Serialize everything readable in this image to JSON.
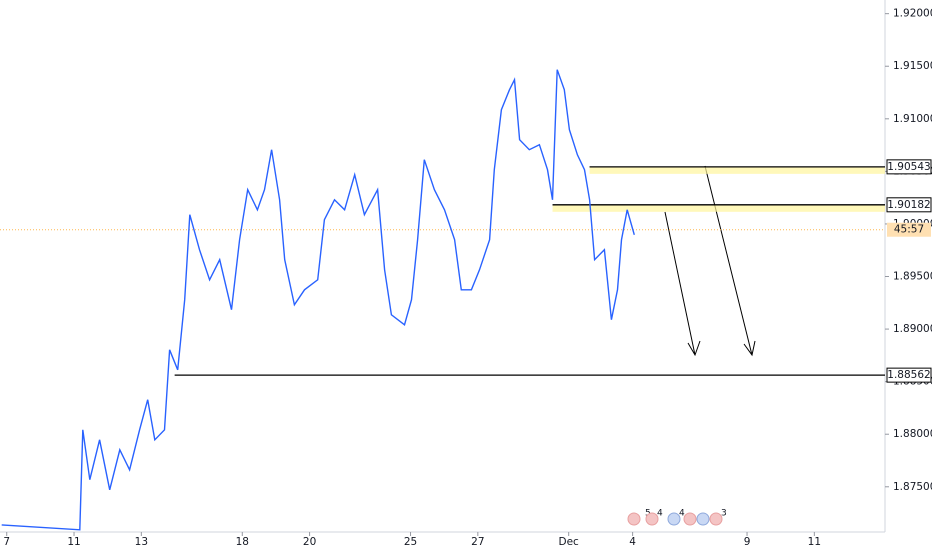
{
  "chart_data": {
    "type": "line",
    "color": "#2962ff",
    "x": [
      -0.15,
      2.17,
      2.26,
      2.47,
      2.76,
      3.06,
      3.36,
      3.65,
      3.95,
      4.19,
      4.4,
      4.69,
      4.84,
      5.08,
      5.29,
      5.44,
      5.73,
      6.03,
      6.33,
      6.68,
      6.92,
      7.16,
      7.45,
      7.66,
      7.87,
      8.11,
      8.26,
      8.55,
      8.85,
      9.24,
      9.44,
      9.74,
      10.04,
      10.34,
      10.63,
      11.02,
      11.23,
      11.43,
      11.82,
      12.03,
      12.21,
      12.41,
      12.71,
      13.01,
      13.31,
      13.51,
      13.81,
      14.05,
      14.35,
      14.49,
      14.7,
      14.94,
      15.09,
      15.24,
      15.53,
      15.83,
      16.07,
      16.22,
      16.36,
      16.57,
      16.72,
      16.96,
      17.17,
      17.32,
      17.47,
      17.76,
      17.97,
      18.15,
      18.27,
      18.44,
      18.65
    ],
    "values": [
      1.87138,
      1.87091,
      1.88042,
      1.87567,
      1.87947,
      1.87471,
      1.87852,
      1.87662,
      1.88042,
      1.88328,
      1.87947,
      1.88042,
      1.88803,
      1.88613,
      1.89279,
      1.90088,
      1.89755,
      1.89469,
      1.8966,
      1.89184,
      1.8985,
      1.90326,
      1.90135,
      1.90326,
      1.90706,
      1.9023,
      1.8966,
      1.89231,
      1.89374,
      1.89469,
      1.9004,
      1.9023,
      1.90135,
      1.90468,
      1.90088,
      1.90326,
      1.89564,
      1.89136,
      1.89041,
      1.89279,
      1.8985,
      1.90611,
      1.90326,
      1.90135,
      1.8985,
      1.89374,
      1.89374,
      1.89564,
      1.8985,
      1.90516,
      1.91087,
      1.91277,
      1.91372,
      1.90801,
      1.90706,
      1.90754,
      1.90516,
      1.9023,
      1.91467,
      1.91277,
      1.90896,
      1.90658,
      1.90516,
      1.9023,
      1.8966,
      1.89755,
      1.89089,
      1.89374,
      1.8985,
      1.90135,
      1.89897
    ],
    "xlim": [
      -0.2,
      26.1
    ],
    "xticks": [
      {
        "value": 0,
        "label": "7"
      },
      {
        "value": 2,
        "label": "11"
      },
      {
        "value": 4,
        "label": "13"
      },
      {
        "value": 7,
        "label": "18"
      },
      {
        "value": 9,
        "label": "20"
      },
      {
        "value": 12,
        "label": "25"
      },
      {
        "value": 14,
        "label": "27"
      },
      {
        "value": 16.7,
        "label": "Dec"
      },
      {
        "value": 18.6,
        "label": "4"
      },
      {
        "value": 22,
        "label": "9"
      },
      {
        "value": 24,
        "label": "11"
      }
    ],
    "ylim": [
      1.8707,
      1.9213
    ],
    "yticks": [
      {
        "value": 1.875,
        "label": "1.87500"
      },
      {
        "value": 1.88,
        "label": "1.88000"
      },
      {
        "value": 1.885,
        "label": "1.88500"
      },
      {
        "value": 1.89,
        "label": "1.89000"
      },
      {
        "value": 1.895,
        "label": "1.89500"
      },
      {
        "value": 1.9,
        "label": "1.90000"
      },
      {
        "value": 1.905,
        "label": "1.90500"
      },
      {
        "value": 1.91,
        "label": "1.91000"
      },
      {
        "value": 1.915,
        "label": "1.91500"
      },
      {
        "value": 1.92,
        "label": "1.92000"
      }
    ],
    "levels": [
      {
        "price": 1.90543,
        "start": 17.32,
        "zone": true
      },
      {
        "price": 1.90182,
        "start": 16.22,
        "zone": true
      },
      {
        "price": 1.88562,
        "start": 4.99,
        "zone": false
      }
    ],
    "current": {
      "price": 1.89945,
      "countdown": "45:57"
    },
    "events": [
      "5",
      "4",
      "4",
      "3"
    ]
  }
}
